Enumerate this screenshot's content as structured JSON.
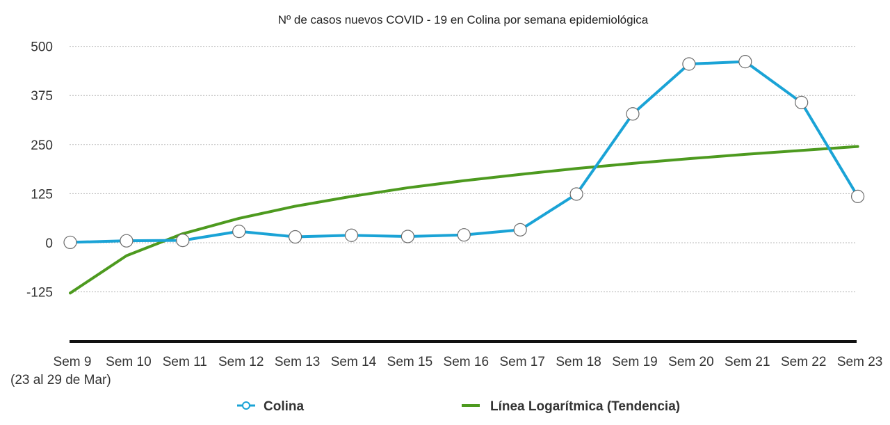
{
  "chart_data": {
    "type": "line",
    "title": "Nº de casos nuevos COVID - 19 en Colina por semana epidemiológica",
    "categories": [
      "Sem 9",
      "Sem 10",
      "Sem 11",
      "Sem 12",
      "Sem 13",
      "Sem 14",
      "Sem 15",
      "Sem 16",
      "Sem 17",
      "Sem 18",
      "Sem 19",
      "Sem 20",
      "Sem 21",
      "Sem 22",
      "Sem 23"
    ],
    "first_category_note": "(23 al 29 de Mar)",
    "yticks": [
      500,
      375,
      250,
      125,
      0,
      -125
    ],
    "ylim": [
      -250,
      500
    ],
    "grid": true,
    "legend_position": "bottom",
    "series": [
      {
        "name": "Colina",
        "color": "#1aa3d6",
        "marker": "circle",
        "values": [
          1,
          5,
          6,
          29,
          15,
          19,
          16,
          20,
          33,
          124,
          328,
          455,
          461,
          357,
          118
        ]
      },
      {
        "name": "Línea Logarítmica (Tendencia)",
        "color": "#4d9a1f",
        "trend": "logarithmic",
        "values": [
          -128,
          -33,
          23,
          62,
          93,
          118,
          140,
          158,
          174,
          189,
          202,
          214,
          225,
          235,
          245
        ]
      }
    ]
  }
}
